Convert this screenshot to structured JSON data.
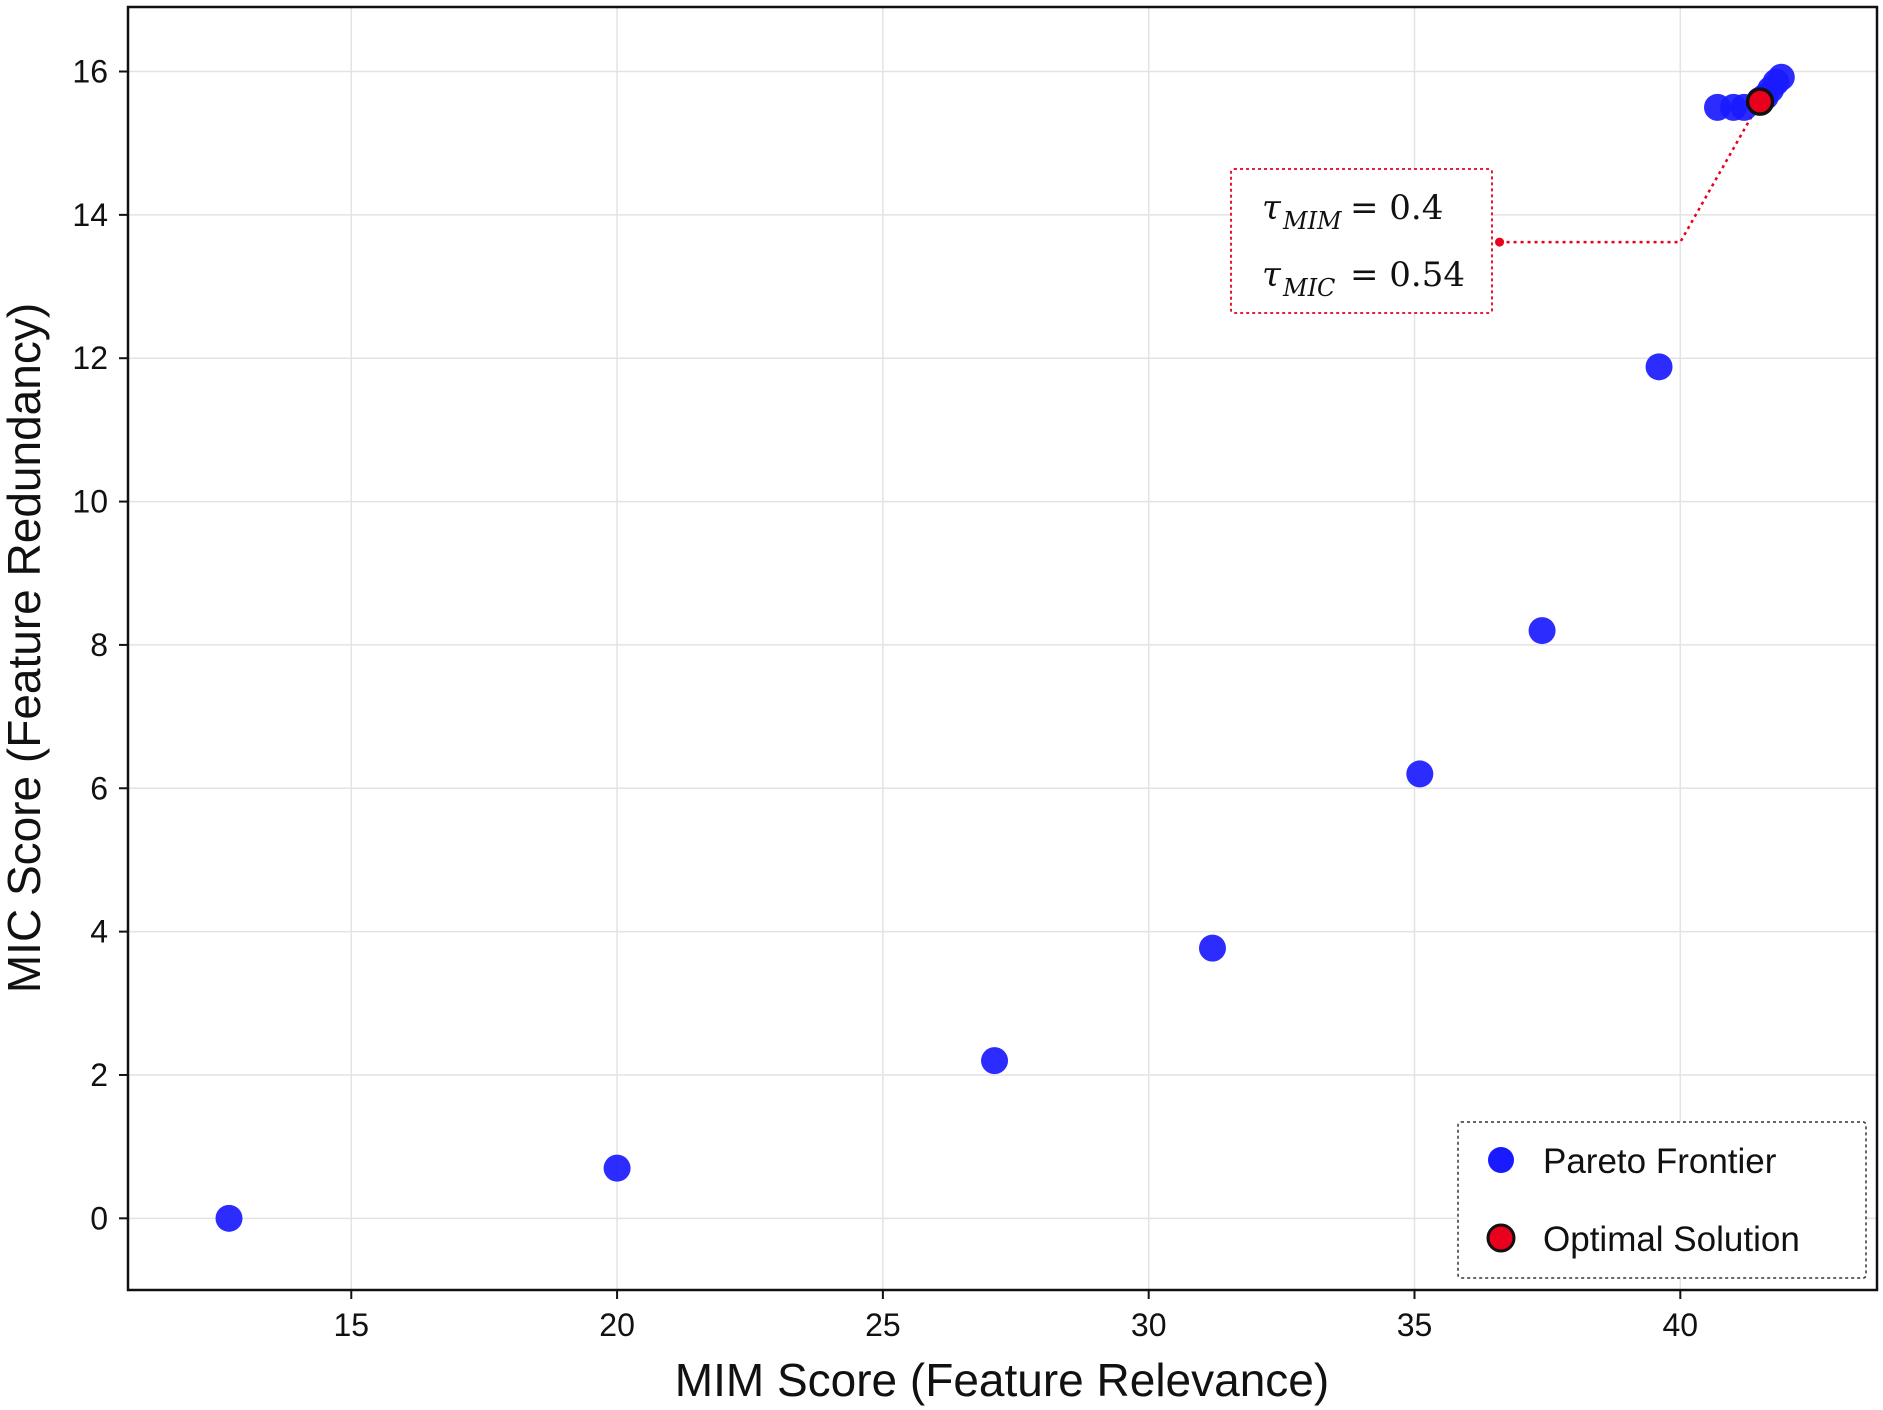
{
  "chart_data": {
    "type": "scatter",
    "title": "",
    "xlabel": "MIM Score (Feature Relevance)",
    "ylabel": "MIC Score (Feature Redundancy)",
    "xlim": [
      10.8,
      43.7
    ],
    "ylim": [
      -1.0,
      16.9
    ],
    "x_ticks": [
      15,
      20,
      25,
      30,
      35,
      40
    ],
    "y_ticks": [
      0,
      2,
      4,
      6,
      8,
      10,
      12,
      14,
      16
    ],
    "grid": true,
    "legend_position": "lower-right",
    "series": [
      {
        "name": "Pareto Frontier",
        "color": "#1a1aff",
        "marker": "circle",
        "points": [
          {
            "x": 12.7,
            "y": 0.0
          },
          {
            "x": 20.0,
            "y": 0.7
          },
          {
            "x": 27.1,
            "y": 2.2
          },
          {
            "x": 31.2,
            "y": 3.77
          },
          {
            "x": 35.1,
            "y": 6.2
          },
          {
            "x": 37.4,
            "y": 8.2
          },
          {
            "x": 39.6,
            "y": 11.88
          },
          {
            "x": 40.7,
            "y": 15.5
          },
          {
            "x": 41.0,
            "y": 15.5
          },
          {
            "x": 41.2,
            "y": 15.5
          },
          {
            "x": 41.5,
            "y": 15.6
          },
          {
            "x": 41.6,
            "y": 15.65
          },
          {
            "x": 41.7,
            "y": 15.75
          },
          {
            "x": 41.8,
            "y": 15.85
          },
          {
            "x": 41.9,
            "y": 15.92
          }
        ]
      },
      {
        "name": "Optimal Solution",
        "color": "#e8001c",
        "edge_color": "#111111",
        "marker": "circle",
        "points": [
          {
            "x": 41.5,
            "y": 15.58
          }
        ]
      }
    ],
    "annotation": {
      "lines": [
        {
          "symbol": "τ",
          "subscript": "MIM",
          "value": "= 0.4"
        },
        {
          "symbol": "τ",
          "subscript": "MIC",
          "value": "= 0.54"
        }
      ],
      "anchor": {
        "x": 36.6,
        "y": 13.62
      },
      "elbow": {
        "x": 40.0,
        "y": 13.62
      },
      "target": {
        "x": 41.5,
        "y": 15.58
      },
      "color": "#e8001c"
    }
  }
}
